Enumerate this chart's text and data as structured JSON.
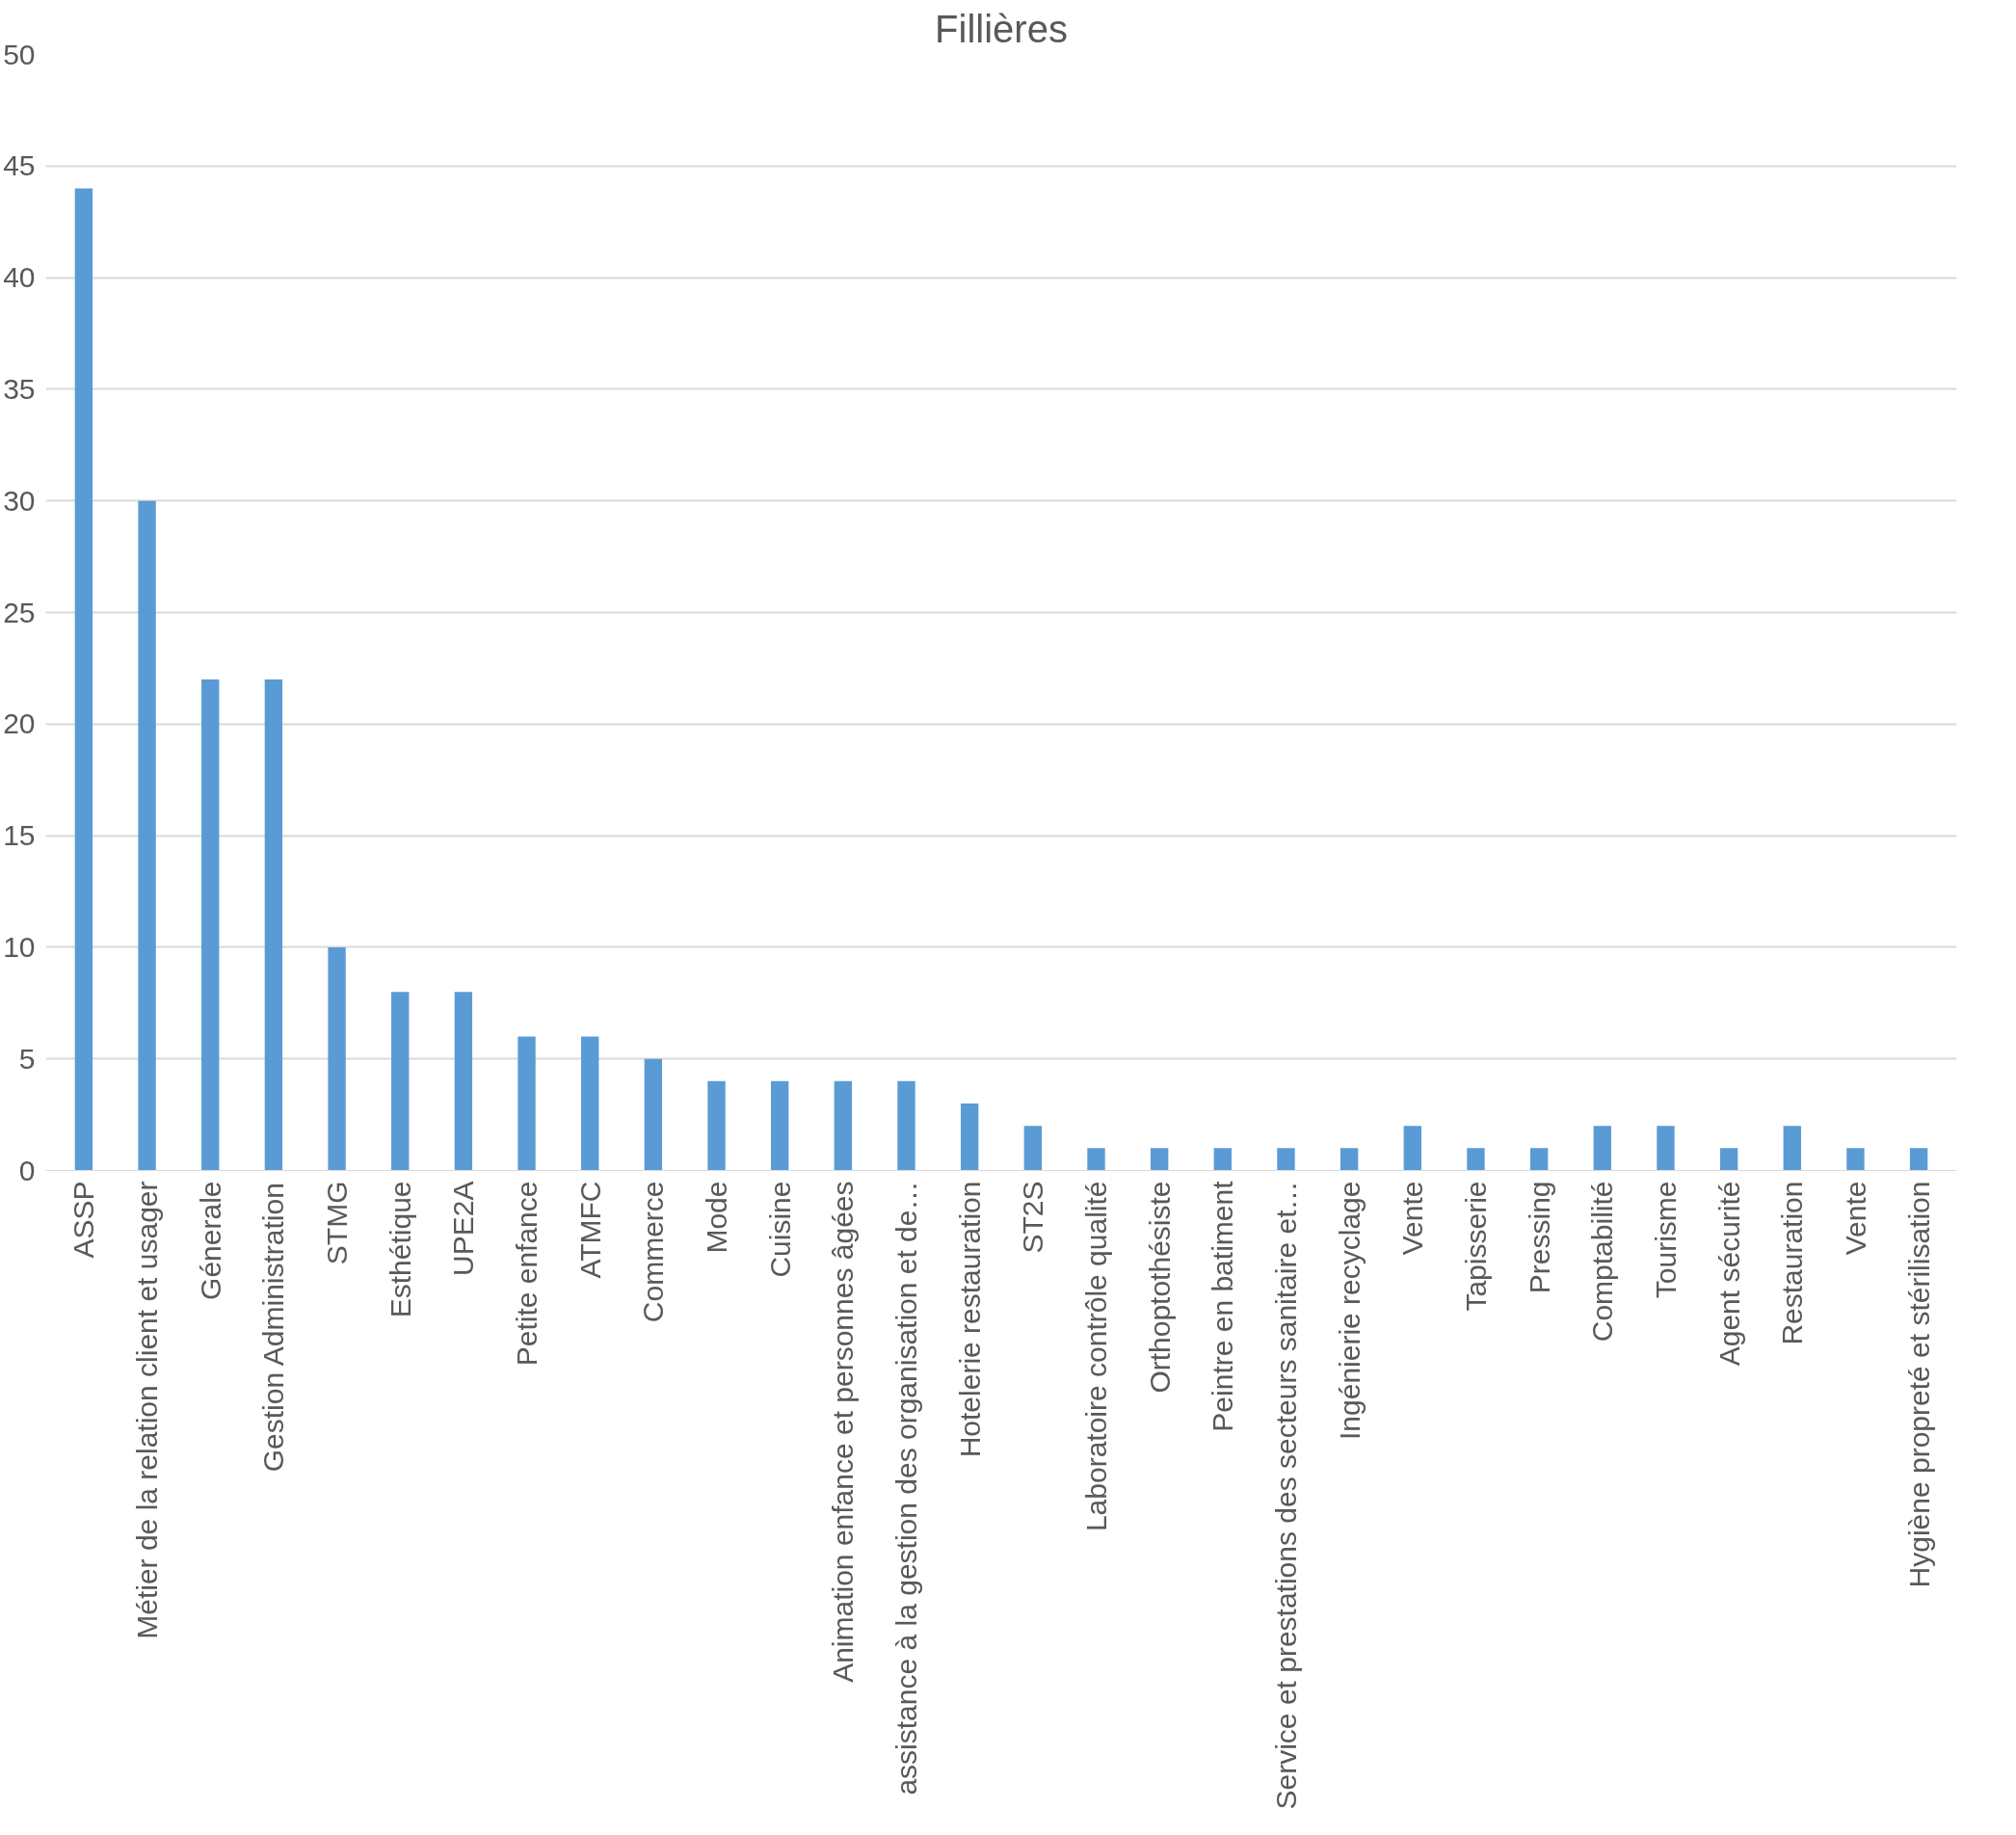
{
  "chart_data": {
    "type": "bar",
    "title": "Fillières",
    "categories": [
      "ASSP",
      "Métier de la relation client et usager",
      "Génerale",
      "Gestion Administration",
      "STMG",
      "Esthétique",
      "UPE2A",
      "Petite enfance",
      "ATMFC",
      "Commerce",
      "Mode",
      "Cuisine",
      "Animation enfance et personnes âgées",
      "assistance à la gestion des organisation et de…",
      "Hotelerie restauration",
      "ST2S",
      "Laboratoire contrôle qualité",
      "Orthoptothésiste",
      "Peintre en batiment",
      "Service et prestations des secteurs sanitaire et…",
      "Ingénierie recyclage",
      "Vente",
      "Tapisserie",
      "Pressing",
      "Comptabilité",
      "Tourisme",
      "Agent sécurité",
      "Restauration",
      "Vente",
      "Hygiène propreté et stérilisation"
    ],
    "values": [
      44,
      30,
      22,
      22,
      10,
      8,
      8,
      6,
      6,
      5,
      4,
      4,
      4,
      4,
      3,
      2,
      1,
      1,
      1,
      1,
      1,
      2,
      1,
      1,
      2,
      2,
      1,
      2,
      1,
      1
    ],
    "color": "#5b9bd5",
    "ylim": [
      0,
      50
    ],
    "yticks": [
      0,
      5,
      10,
      15,
      20,
      25,
      30,
      35,
      40,
      45,
      50
    ],
    "grid": "y"
  }
}
